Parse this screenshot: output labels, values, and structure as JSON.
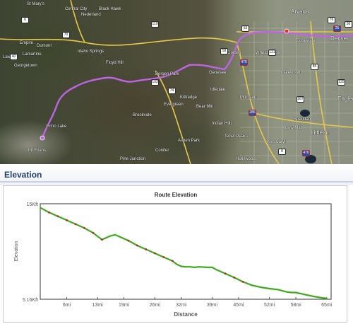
{
  "map": {
    "places": [
      "St Mary's",
      "Central City",
      "Black Hawk",
      "Nederland",
      "Idaho Springs",
      "Georgetown",
      "Evergreen",
      "Bergen Park",
      "Kittredge",
      "Morrison",
      "Golden",
      "Arvada",
      "Denver",
      "Lakewood",
      "Edgewater",
      "Englewood",
      "Littleton",
      "Conifer",
      "Aspen Park",
      "Brookvale",
      "Bear Mtn",
      "Genesee",
      "Idledale",
      "Dumont",
      "Lawson",
      "Empire",
      "Pine Junction",
      "Ken Caryl",
      "Bow Mar",
      "Sheridan",
      "Wheat Ridge",
      "Lamartine",
      "Floyd Hill",
      "Indian Hills",
      "Mt Evans",
      "Echo Lake",
      "Hollywood",
      "Tenet Peaks"
    ],
    "highway_shields": [
      "70",
      "6",
      "40",
      "119",
      "103",
      "74",
      "470",
      "285",
      "25",
      "85",
      "287",
      "121",
      "470",
      "8",
      "93",
      "58",
      "76",
      "36",
      "225"
    ]
  },
  "elevation_section": {
    "title": "Elevation"
  },
  "chart_data": {
    "type": "line",
    "title": "Route Elevation",
    "xlabel": "Distance",
    "ylabel": "Elevation",
    "y_tick_labels": [
      "15Kft",
      "5.16Kft"
    ],
    "ylim": [
      5160,
      15000
    ],
    "x_tick_labels": [
      "6mi",
      "13mi",
      "19mi",
      "26mi",
      "32mi",
      "39mi",
      "45mi",
      "52mi",
      "58mi",
      "65mi"
    ],
    "x_tick_values": [
      6,
      13,
      19,
      26,
      32,
      39,
      45,
      52,
      58,
      65
    ],
    "xlim": [
      0,
      66
    ],
    "grid": false,
    "legend": "none",
    "colors": {
      "line": "#3daa1e",
      "highlight": "#cc1f1f",
      "frame": "#333333"
    },
    "series": [
      {
        "x": [
          0,
          2,
          4,
          6,
          8,
          10,
          12,
          14,
          15,
          16,
          17,
          18,
          20,
          22,
          24,
          26,
          28,
          30,
          31,
          32,
          33,
          34,
          35,
          36,
          38,
          39,
          40,
          42,
          44,
          46,
          48,
          50,
          52,
          54,
          56,
          57,
          58,
          60,
          62,
          64,
          65
        ],
        "y": [
          14600,
          14100,
          13700,
          13300,
          12900,
          12500,
          12000,
          11300,
          11500,
          11700,
          11800,
          11600,
          11200,
          10700,
          10300,
          9900,
          9500,
          9100,
          8750,
          8550,
          8500,
          8500,
          8450,
          8500,
          8450,
          8450,
          8200,
          7800,
          7400,
          6950,
          6600,
          6400,
          6250,
          6150,
          5900,
          5850,
          5850,
          5650,
          5450,
          5300,
          5250
        ]
      }
    ]
  }
}
